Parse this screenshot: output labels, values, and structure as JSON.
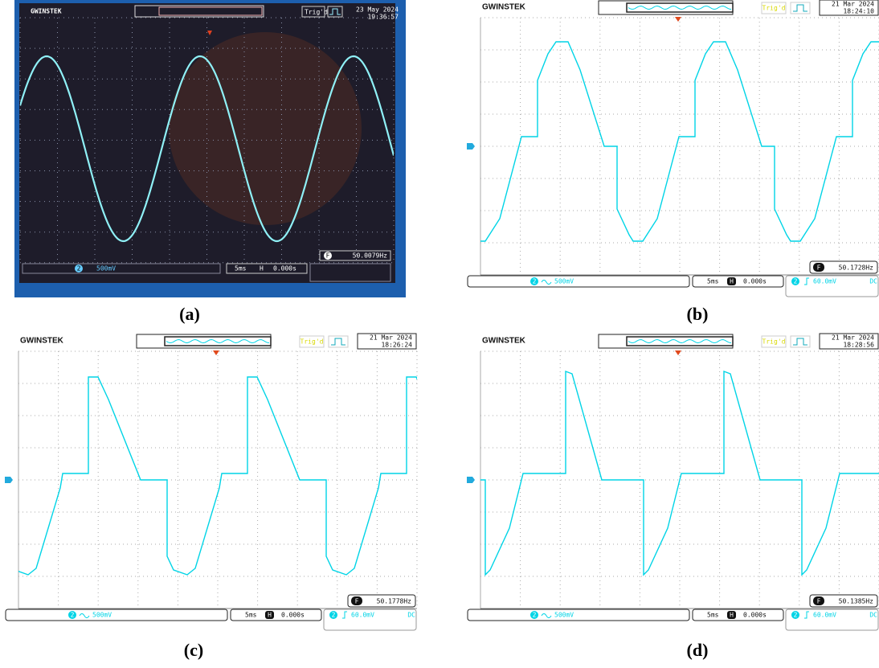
{
  "panels": [
    {
      "caption": "(a)",
      "brand": "GWINSTEK",
      "trigger": "Trig'd",
      "date": "23 May 2024",
      "time": "19:36:57",
      "channel": "2",
      "channel_scale": "500mV",
      "timebase": "5ms",
      "position_badge": "H",
      "position": "0.000s",
      "freq_badge": "F",
      "frequency": "50.0079Hz"
    },
    {
      "caption": "(b)",
      "brand": "GWINSTEK",
      "trigger": "Trig'd",
      "date": "21 Mar 2024",
      "time": "18:24:10",
      "channel": "2",
      "channel_scale": "500mV",
      "timebase": "5ms",
      "position_badge": "H",
      "position": "0.000s",
      "freq_badge": "F",
      "frequency": "50.1728Hz",
      "trigger_level": "60.0mV",
      "coupling": "DC"
    },
    {
      "caption": "(c)",
      "brand": "GWINSTEK",
      "trigger": "Trig'd",
      "date": "21 Mar 2024",
      "time": "18:26:24",
      "channel": "2",
      "channel_scale": "500mV",
      "timebase": "5ms",
      "position_badge": "H",
      "position": "0.000s",
      "freq_badge": "F",
      "frequency": "50.1778Hz",
      "trigger_level": "60.0mV",
      "coupling": "DC"
    },
    {
      "caption": "(d)",
      "brand": "GWINSTEK",
      "trigger": "Trig'd",
      "date": "21 Mar 2024",
      "time": "18:28:56",
      "channel": "2",
      "channel_scale": "500mV",
      "timebase": "5ms",
      "position_badge": "H",
      "position": "0.000s",
      "freq_badge": "F",
      "frequency": "50.1385Hz",
      "trigger_level": "60.0mV",
      "coupling": "DC"
    }
  ]
}
